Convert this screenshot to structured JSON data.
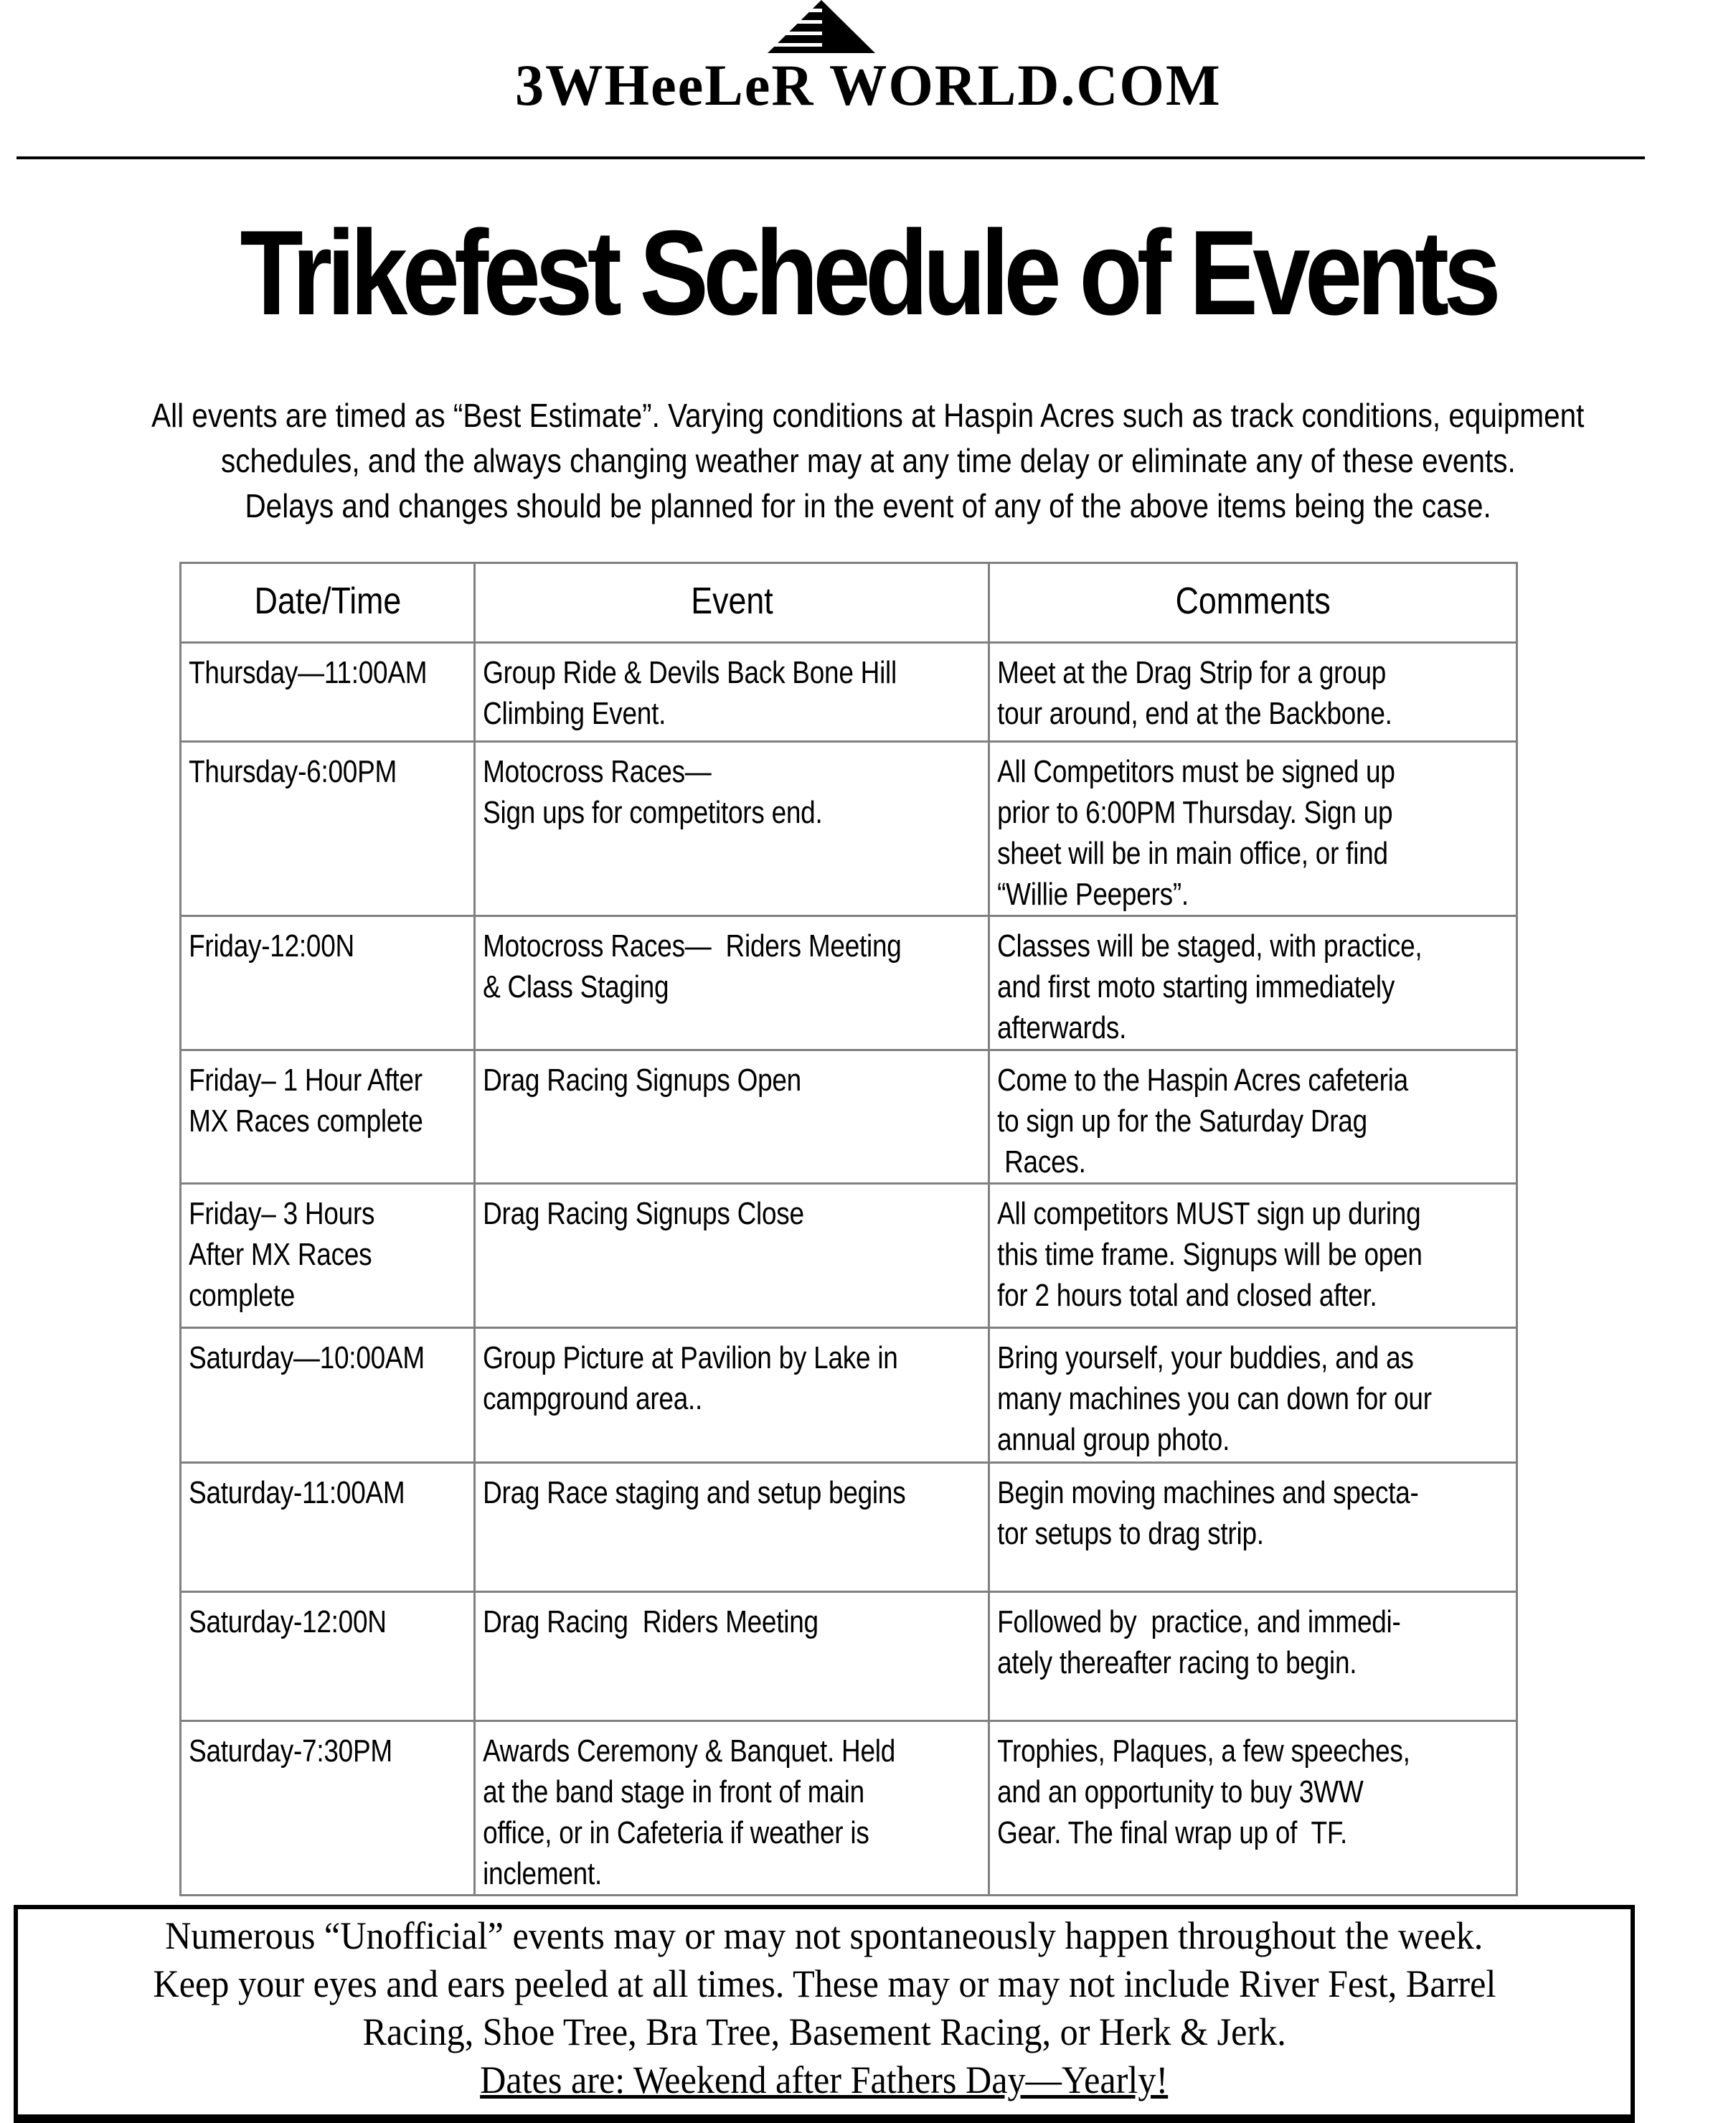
{
  "logo": {
    "text": "3WHeeLeR WORLD.COM",
    "icon": "stepped-triangle-logo"
  },
  "title": "Trikefest Schedule of Events",
  "intro": [
    "All events are timed as “Best Estimate”. Varying conditions at Haspin Acres such as track conditions, equipment",
    "schedules, and the always changing weather may at any time delay or eliminate any of these events.",
    "Delays and changes should be planned for in the event of any of the above items being the case."
  ],
  "table": {
    "headers": [
      "Date/Time",
      "Event",
      "Comments"
    ],
    "rows": [
      {
        "date": "Thursday—11:00AM",
        "event": "Group Ride & Devils Back Bone Hill\nClimbing Event.",
        "comments": "Meet at the Drag Strip for a group\ntour around, end at the Backbone."
      },
      {
        "date": "Thursday-6:00PM",
        "event": "Motocross Races—\nSign ups for competitors end.",
        "comments": "All Competitors must be signed up\nprior to 6:00PM Thursday. Sign up\nsheet will be in main office, or find\n“Willie Peepers”."
      },
      {
        "date": "Friday-12:00N",
        "event": "Motocross Races—  Riders Meeting\n& Class Staging",
        "comments": "Classes will be staged, with practice,\nand first moto starting immediately\nafterwards."
      },
      {
        "date": "Friday– 1 Hour After\nMX Races complete",
        "event": "Drag Racing Signups Open",
        "comments": "Come to the Haspin Acres cafeteria\nto sign up for the Saturday Drag\n Races."
      },
      {
        "date": "Friday– 3 Hours\nAfter MX Races\ncomplete",
        "event": "Drag Racing Signups Close",
        "comments": "All competitors MUST sign up during\nthis time frame. Signups will be open\nfor 2 hours total and closed after."
      },
      {
        "date": "Saturday—10:00AM",
        "event": "Group Picture at Pavilion by Lake in\ncampground area..",
        "comments": "Bring yourself, your buddies, and as\nmany machines you can down for our\nannual group photo."
      },
      {
        "date": "Saturday-11:00AM",
        "event": "Drag Race staging and setup begins",
        "comments": "Begin moving machines and specta-\ntor setups to drag strip."
      },
      {
        "date": "Saturday-12:00N",
        "event": "Drag Racing  Riders Meeting",
        "comments": "Followed by  practice, and immedi-\nately thereafter racing to begin."
      },
      {
        "date": "Saturday-7:30PM",
        "event": "Awards Ceremony & Banquet. Held\nat the band stage in front of main\noffice, or in Cafeteria if weather is\ninclement.",
        "comments": "Trophies, Plaques, a few speeches,\nand an opportunity to buy 3WW\nGear. The final wrap up of  TF."
      }
    ]
  },
  "footer": {
    "lines": [
      "Numerous “Unofficial” events may or may not spontaneously happen throughout the week.",
      "Keep your eyes and ears peeled at all times. These may or may not include River Fest, Barrel",
      "Racing, Shoe Tree, Bra Tree, Basement Racing, or Herk & Jerk."
    ],
    "dates": "Dates are: Weekend after Fathers Day—Yearly!"
  }
}
